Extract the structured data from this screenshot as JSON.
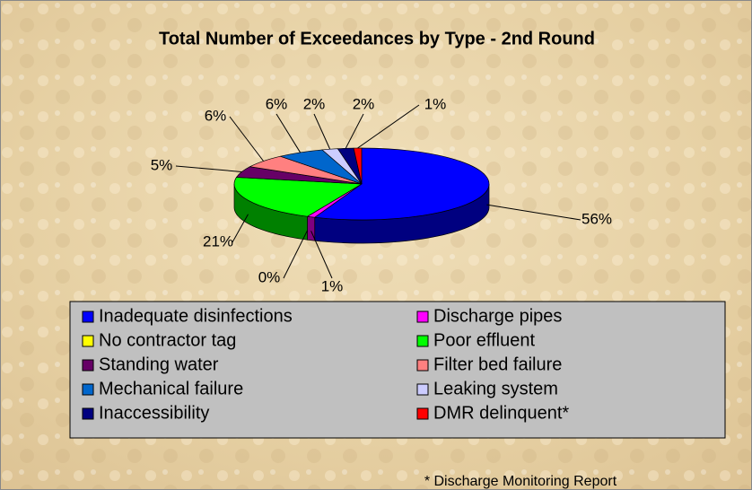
{
  "chart_data": {
    "type": "pie3d",
    "title": "Total Number of Exceedances by Type - 2nd Round",
    "categories": [
      "Inadequate disinfections",
      "Discharge pipes",
      "No contractor tag",
      "Poor effluent",
      "Standing water",
      "Filter bed failure",
      "Mechanical failure",
      "Leaking system",
      "Inaccessibility",
      "DMR delinquent*"
    ],
    "values": [
      56,
      1,
      0,
      21,
      5,
      6,
      6,
      2,
      2,
      1
    ],
    "value_labels": [
      "56%",
      "1%",
      "0%",
      "21%",
      "5%",
      "6%",
      "6%",
      "2%",
      "2%",
      "1%"
    ],
    "colors": [
      "#0000ff",
      "#ff00ff",
      "#ffff00",
      "#00ff00",
      "#660066",
      "#ff8080",
      "#0066cc",
      "#ccccff",
      "#000080",
      "#ff0000"
    ],
    "footnote": "* Discharge Monitoring Report"
  }
}
